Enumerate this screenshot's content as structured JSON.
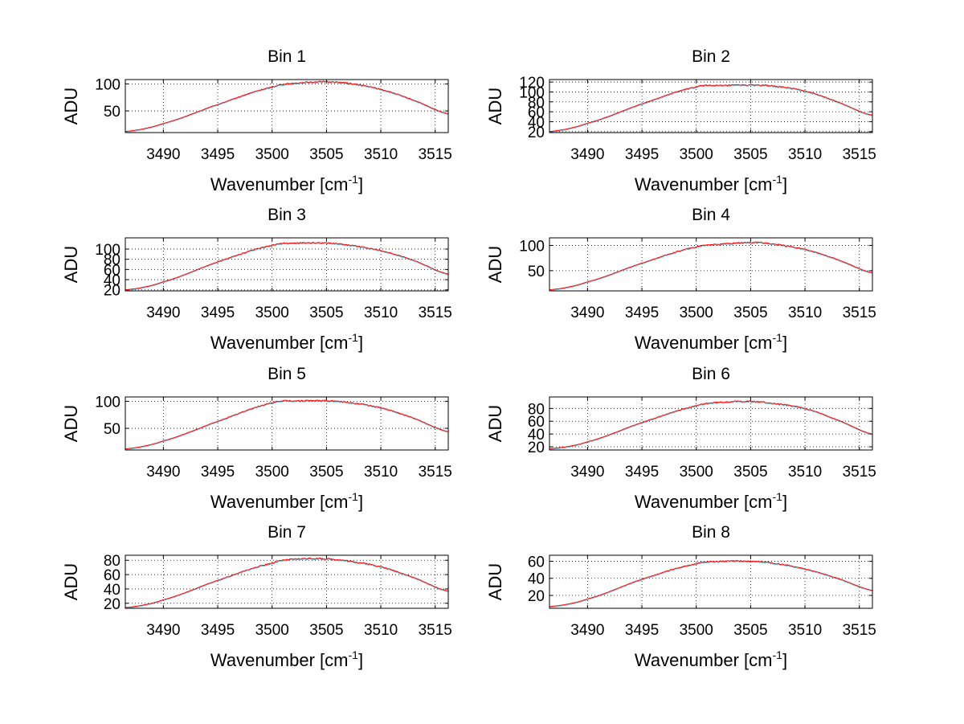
{
  "chart_data": [
    {
      "type": "line",
      "title": "Bin 1",
      "xlabel": "Wavenumber",
      "xunit_pre": " [cm",
      "xunit_sup": "-1",
      "xunit_post": "]",
      "ylabel": "ADU",
      "xlim": [
        3486.5,
        3516.2
      ],
      "ylim": [
        10,
        108
      ],
      "xticks": [
        "3490",
        "3495",
        "3500",
        "3505",
        "3510",
        "3515"
      ],
      "yticks": [
        "50",
        "100"
      ],
      "grid": true,
      "line_color": "#ff0000",
      "x": [
        3486.5,
        3490,
        3495,
        3500,
        3502.5,
        3505,
        3507,
        3510,
        3513,
        3516.2
      ],
      "y": [
        12,
        27,
        62,
        94,
        102,
        104,
        101,
        90,
        70,
        45
      ]
    },
    {
      "type": "line",
      "title": "Bin 2",
      "xlabel": "Wavenumber",
      "xunit_pre": " [cm",
      "xunit_sup": "-1",
      "xunit_post": "]",
      "ylabel": "ADU",
      "xlim": [
        3486.5,
        3516.2
      ],
      "ylim": [
        18,
        125
      ],
      "xticks": [
        "3490",
        "3495",
        "3500",
        "3505",
        "3510",
        "3515"
      ],
      "yticks": [
        "20",
        "40",
        "60",
        "80",
        "100",
        "120"
      ],
      "grid": true,
      "line_color": "#ff0000",
      "x": [
        3486.5,
        3490,
        3495,
        3500,
        3502.5,
        3505,
        3507,
        3510,
        3513,
        3516.2
      ],
      "y": [
        20,
        37,
        76,
        110,
        113,
        114,
        112,
        102,
        80,
        53
      ]
    },
    {
      "type": "line",
      "title": "Bin 3",
      "xlabel": "Wavenumber",
      "xunit_pre": " [cm",
      "xunit_sup": "-1",
      "xunit_post": "]",
      "ylabel": "ADU",
      "xlim": [
        3486.5,
        3516.2
      ],
      "ylim": [
        18,
        122
      ],
      "xticks": [
        "3490",
        "3495",
        "3500",
        "3505",
        "3510",
        "3515"
      ],
      "yticks": [
        "20",
        "40",
        "60",
        "80",
        "100"
      ],
      "grid": true,
      "line_color": "#ff0000",
      "x": [
        3486.5,
        3490,
        3495,
        3500,
        3502.5,
        3505,
        3507,
        3510,
        3513,
        3516.2
      ],
      "y": [
        20,
        36,
        75,
        107,
        112,
        112,
        108,
        97,
        78,
        51
      ]
    },
    {
      "type": "line",
      "title": "Bin 4",
      "xlabel": "Wavenumber",
      "xunit_pre": " [cm",
      "xunit_sup": "-1",
      "xunit_post": "]",
      "ylabel": "ADU",
      "xlim": [
        3486.5,
        3516.2
      ],
      "ylim": [
        10,
        115
      ],
      "xticks": [
        "3490",
        "3495",
        "3500",
        "3505",
        "3510",
        "3515"
      ],
      "yticks": [
        "50",
        "100"
      ],
      "grid": true,
      "line_color": "#ff0000",
      "x": [
        3486.5,
        3490,
        3495,
        3500,
        3502.5,
        3505,
        3507,
        3510,
        3513,
        3516.2
      ],
      "y": [
        12,
        28,
        65,
        97,
        103,
        106,
        103,
        92,
        72,
        46
      ]
    },
    {
      "type": "line",
      "title": "Bin 5",
      "xlabel": "Wavenumber",
      "xunit_pre": " [cm",
      "xunit_sup": "-1",
      "xunit_post": "]",
      "ylabel": "ADU",
      "xlim": [
        3486.5,
        3516.2
      ],
      "ylim": [
        10,
        108
      ],
      "xticks": [
        "3490",
        "3495",
        "3500",
        "3505",
        "3510",
        "3515"
      ],
      "yticks": [
        "50",
        "100"
      ],
      "grid": true,
      "line_color": "#ff0000",
      "x": [
        3486.5,
        3490,
        3495,
        3500,
        3502.5,
        3505,
        3507,
        3510,
        3513,
        3516.2
      ],
      "y": [
        12,
        27,
        63,
        97,
        101,
        101,
        98,
        88,
        69,
        44
      ]
    },
    {
      "type": "line",
      "title": "Bin 6",
      "xlabel": "Wavenumber",
      "xunit_pre": " [cm",
      "xunit_sup": "-1",
      "xunit_post": "]",
      "ylabel": "ADU",
      "xlim": [
        3486.5,
        3516.2
      ],
      "ylim": [
        15,
        98
      ],
      "xticks": [
        "3490",
        "3495",
        "3500",
        "3505",
        "3510",
        "3515"
      ],
      "yticks": [
        "20",
        "40",
        "60",
        "80"
      ],
      "grid": true,
      "line_color": "#ff0000",
      "x": [
        3486.5,
        3490,
        3495,
        3500,
        3502.5,
        3505,
        3507,
        3510,
        3513,
        3516.2
      ],
      "y": [
        17,
        28,
        58,
        84,
        90,
        91,
        88,
        80,
        62,
        40
      ]
    },
    {
      "type": "line",
      "title": "Bin 7",
      "xlabel": "Wavenumber",
      "xunit_pre": " [cm",
      "xunit_sup": "-1",
      "xunit_post": "]",
      "ylabel": "ADU",
      "xlim": [
        3486.5,
        3516.2
      ],
      "ylim": [
        13,
        87
      ],
      "xticks": [
        "3490",
        "3495",
        "3500",
        "3505",
        "3510",
        "3515"
      ],
      "yticks": [
        "20",
        "40",
        "60",
        "80"
      ],
      "grid": true,
      "line_color": "#ff0000",
      "x": [
        3486.5,
        3490,
        3495,
        3500,
        3502.5,
        3505,
        3507,
        3510,
        3513,
        3516.2
      ],
      "y": [
        14,
        25,
        52,
        76,
        82,
        82,
        79,
        71,
        56,
        37
      ]
    },
    {
      "type": "line",
      "title": "Bin 8",
      "xlabel": "Wavenumber",
      "xunit_pre": " [cm",
      "xunit_sup": "-1",
      "xunit_post": "]",
      "ylabel": "ADU",
      "xlim": [
        3486.5,
        3516.2
      ],
      "ylim": [
        5,
        67
      ],
      "xticks": [
        "3490",
        "3495",
        "3500",
        "3505",
        "3510",
        "3515"
      ],
      "yticks": [
        "20",
        "40",
        "60"
      ],
      "grid": true,
      "line_color": "#ff0000",
      "x": [
        3486.5,
        3490,
        3495,
        3500,
        3502.5,
        3505,
        3507,
        3510,
        3513,
        3516.2
      ],
      "y": [
        7,
        16,
        39,
        57,
        60,
        60,
        58,
        51,
        40,
        26
      ]
    }
  ]
}
